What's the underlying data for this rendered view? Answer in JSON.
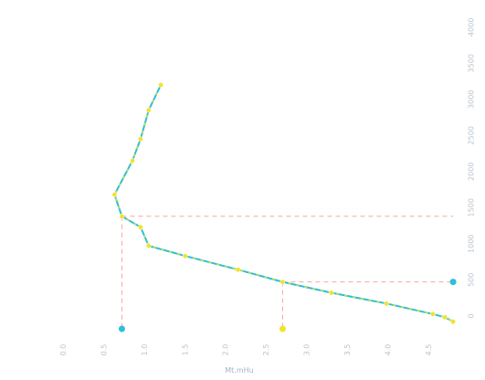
{
  "chart_data": {
    "type": "line",
    "title": "",
    "xlabel": "Mt.mHu",
    "ylabel": "",
    "x_ticks": [
      "0.0",
      "0.5",
      "1.0",
      "1.5",
      "2.0",
      "2.5",
      "3.0",
      "3.5",
      "4.0",
      "4.5"
    ],
    "y_ticks": [
      "0",
      "500",
      "1000",
      "1500",
      "2000",
      "2500",
      "3000",
      "3500",
      "4000"
    ],
    "xlim": [
      -0.5,
      4.9
    ],
    "ylim": [
      -180,
      4250
    ],
    "grid": false,
    "series": [
      {
        "color": "#2bbfd9",
        "marker_color": "#f2e22a",
        "points": [
          {
            "x": 1.2,
            "y": 3200
          },
          {
            "x": 1.05,
            "y": 2850
          },
          {
            "x": 0.95,
            "y": 2450
          },
          {
            "x": 0.85,
            "y": 2150
          },
          {
            "x": 0.63,
            "y": 1680
          },
          {
            "x": 0.72,
            "y": 1380
          },
          {
            "x": 0.95,
            "y": 1230
          },
          {
            "x": 1.05,
            "y": 970
          },
          {
            "x": 1.5,
            "y": 830
          },
          {
            "x": 2.15,
            "y": 640
          },
          {
            "x": 2.7,
            "y": 470
          },
          {
            "x": 3.3,
            "y": 320
          },
          {
            "x": 3.98,
            "y": 170
          },
          {
            "x": 4.55,
            "y": 25
          },
          {
            "x": 4.7,
            "y": -20
          },
          {
            "x": 4.8,
            "y": -80
          }
        ]
      }
    ],
    "reference_lines": [
      {
        "x": 0.72,
        "y": 1380,
        "x_end": 4.8
      },
      {
        "x": 2.7,
        "y": 470,
        "x_end": 4.8
      }
    ],
    "reference_markers": [
      {
        "x": 0.72,
        "y": -180,
        "color": "#2bbfd9"
      },
      {
        "x": 2.7,
        "y": -180,
        "color": "#f2e22a"
      },
      {
        "x": 4.8,
        "y": 470,
        "color": "#2bbfd9"
      }
    ]
  }
}
